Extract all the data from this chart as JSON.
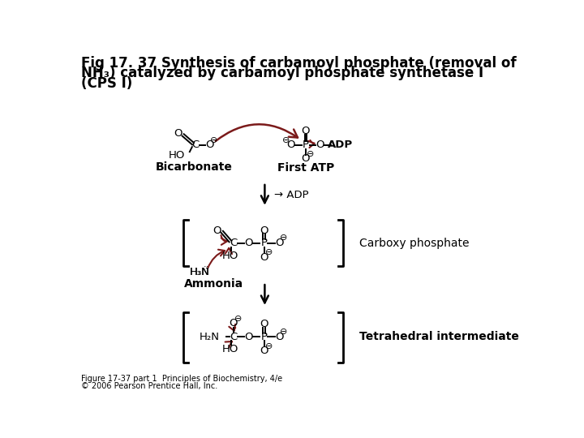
{
  "title_line1": "Fig 17. 37 Synthesis of carbamoyl phosphate (removal of",
  "title_line2": "NH₃) catalyzed by carbamoyl phosphate synthetase I",
  "title_line3": "(CPS I)",
  "title_fontsize": 12,
  "footer_line1": "Figure 17-37 part 1  Principles of Biochemistry, 4/e",
  "footer_line2": "© 2006 Pearson Prentice Hall, Inc.",
  "footer_fontsize": 7,
  "bg_color": "#ffffff",
  "black": "#000000",
  "dark_red": "#7B1A1A",
  "label_bicarbonate": "Bicarbonate",
  "label_first_atp": "First ATP",
  "label_adp": "→ ADP",
  "label_carboxy": "Carboxy phosphate",
  "label_ammonia": "Ammonia",
  "label_tetrahedral": "Tetrahedral intermediate"
}
